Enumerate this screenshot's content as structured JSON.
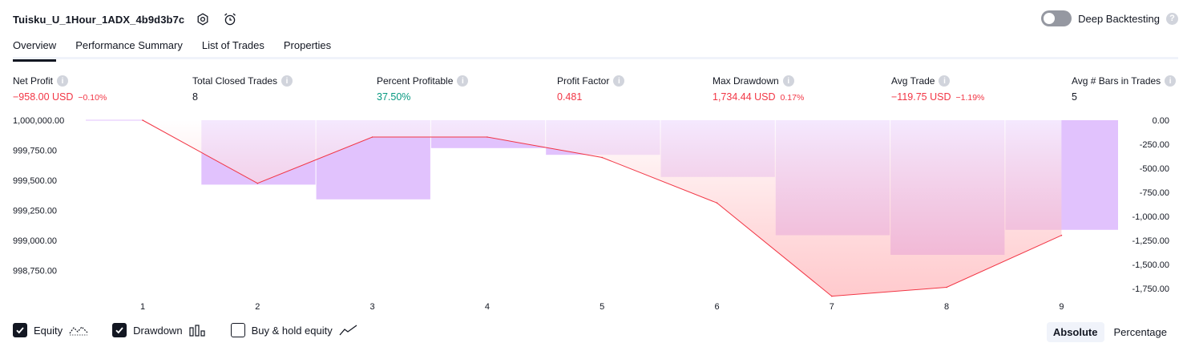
{
  "header": {
    "strategy_name": "Tuisku_U_1Hour_1ADX_4b9d3b7c",
    "deep_backtesting_label": "Deep Backtesting",
    "deep_backtesting_on": false,
    "help_glyph": "?"
  },
  "tabs": [
    {
      "label": "Overview",
      "active": true
    },
    {
      "label": "Performance Summary",
      "active": false
    },
    {
      "label": "List of Trades",
      "active": false
    },
    {
      "label": "Properties",
      "active": false
    }
  ],
  "metrics": {
    "info_glyph": "i",
    "net_profit": {
      "label": "Net Profit",
      "value": "−958.00 USD",
      "pct": "−0.10%",
      "tone": "neg"
    },
    "total_closed_trades": {
      "label": "Total Closed Trades",
      "value": "8",
      "tone": "neu"
    },
    "percent_profitable": {
      "label": "Percent Profitable",
      "value": "37.50%",
      "tone": "pos"
    },
    "profit_factor": {
      "label": "Profit Factor",
      "value": "0.481",
      "tone": "neg"
    },
    "max_drawdown": {
      "label": "Max Drawdown",
      "value": "1,734.44 USD",
      "pct": "0.17%",
      "tone": "neg"
    },
    "avg_trade": {
      "label": "Avg Trade",
      "value": "−119.75 USD",
      "pct": "−1.19%",
      "tone": "neg"
    },
    "avg_bars": {
      "label": "Avg # Bars in Trades",
      "value": "5",
      "tone": "neu"
    }
  },
  "chart_data": {
    "type": "line",
    "x": [
      1,
      2,
      3,
      4,
      5,
      6,
      7,
      8,
      9
    ],
    "x_tick_labels": [
      "1",
      "2",
      "3",
      "4",
      "5",
      "6",
      "7",
      "8",
      "9"
    ],
    "series": [
      {
        "type": "line",
        "values": [
          1000000.0,
          999475.0,
          999860.0,
          999860.0,
          999690.0,
          999312.0,
          998536.0,
          998610.0,
          999042.0
        ]
      },
      {
        "type": "bar",
        "axis": "right",
        "values": [
          0,
          -670,
          -823,
          -290,
          -360,
          -590,
          -1196,
          -1400,
          -1140
        ]
      }
    ],
    "left_axis": {
      "ylim": [
        998600.0,
        1000000.0
      ],
      "tick_labels": [
        "1,000,000.00",
        "999,750.00",
        "999,500.00",
        "999,250.00",
        "999,000.00",
        "998,750.00"
      ],
      "ticks": [
        1000000,
        999750,
        999500,
        999250,
        999000,
        998750
      ]
    },
    "right_axis": {
      "ylim": [
        -1750,
        0
      ],
      "tick_labels": [
        "0.00",
        "-250.00",
        "-500.00",
        "-750.00",
        "-1,000.00",
        "-1,250.00",
        "-1,500.00",
        "-1,750.00"
      ],
      "ticks": [
        0,
        -250,
        -500,
        -750,
        -1000,
        -1250,
        -1500,
        -1750
      ]
    },
    "colors": {
      "equity_line": "#f23645",
      "drawdown_bar": "#e1c2fd",
      "bar_separator": "#ffffff"
    },
    "grid": false
  },
  "legend": {
    "equity": {
      "label": "Equity",
      "checked": true
    },
    "drawdown": {
      "label": "Drawdown",
      "checked": true
    },
    "buy_hold": {
      "label": "Buy & hold equity",
      "checked": false
    }
  },
  "mode": {
    "absolute_label": "Absolute",
    "percentage_label": "Percentage",
    "active": "absolute"
  }
}
